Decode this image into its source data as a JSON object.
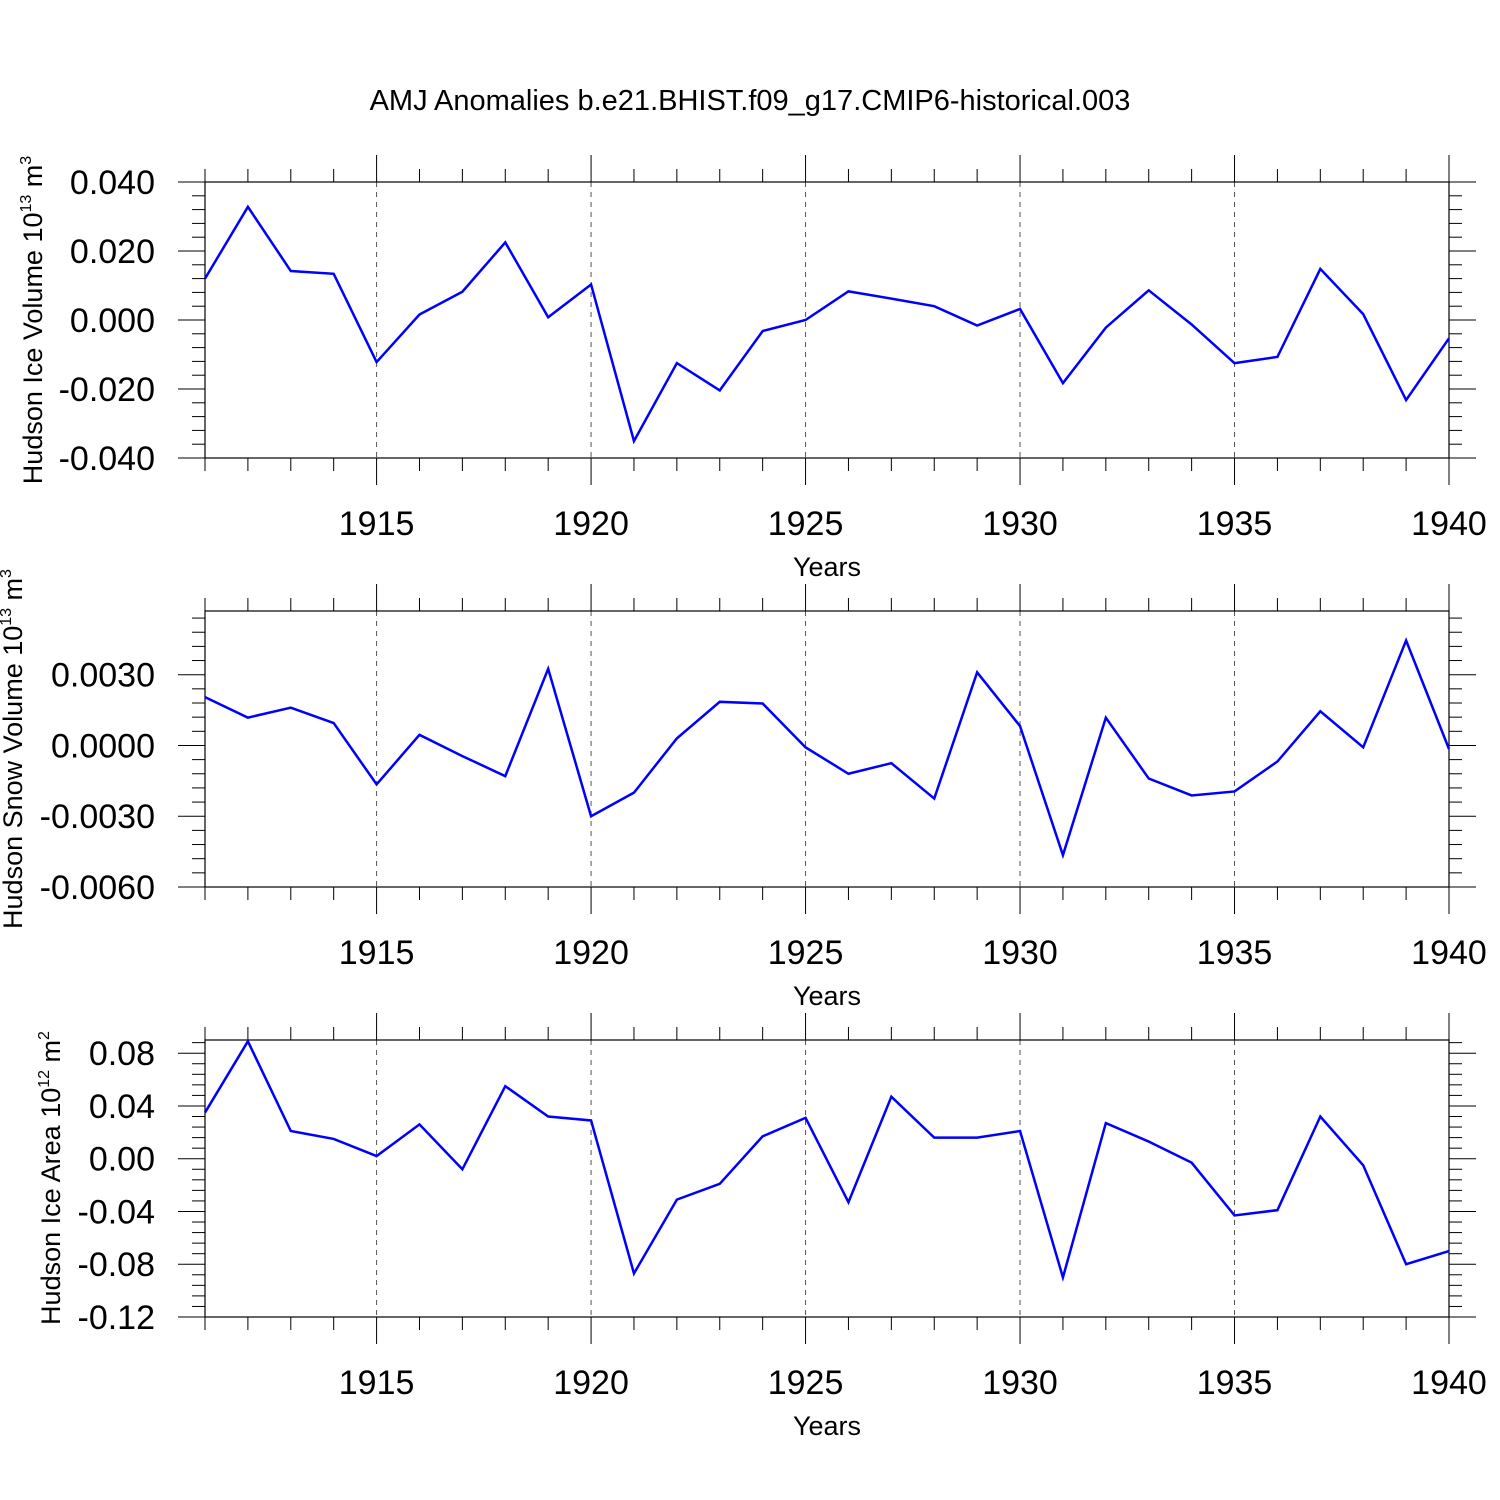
{
  "title": "AMJ Anomalies b.e21.BHIST.f09_g17.CMIP6-historical.003",
  "line_color": "#0000ff",
  "chart_data": [
    {
      "type": "line",
      "xlabel": "Years",
      "ylabel": {
        "text": "Hudson Ice Volume 10",
        "exp": "13",
        "unit": " m",
        "unit_exp": "3"
      },
      "xlim": [
        1911,
        1940
      ],
      "ylim": [
        -0.04,
        0.04
      ],
      "x_ticks": [
        1915,
        1920,
        1925,
        1930,
        1935,
        1940
      ],
      "x_tick_labels": [
        "1915",
        "1920",
        "1925",
        "1930",
        "1935",
        "1940"
      ],
      "y_ticks": [
        -0.04,
        -0.02,
        0.0,
        0.02,
        0.04
      ],
      "y_tick_labels": [
        "-0.040",
        "-0.020",
        "0.000",
        "0.020",
        "0.040"
      ],
      "grid": "dashed vertical at major x ticks",
      "series": [
        {
          "x": [
            1911,
            1912,
            1913,
            1914,
            1915,
            1916,
            1917,
            1918,
            1919,
            1920,
            1921,
            1922,
            1923,
            1924,
            1925,
            1926,
            1927,
            1928,
            1929,
            1930,
            1931,
            1932,
            1933,
            1934,
            1935,
            1936,
            1937,
            1938,
            1939,
            1940
          ],
          "values": [
            0.012,
            0.0328,
            0.0142,
            0.0134,
            -0.0122,
            0.0016,
            0.0082,
            0.0225,
            0.0008,
            0.0103,
            -0.0351,
            -0.0125,
            -0.0204,
            -0.0032,
            0.0,
            0.0083,
            0.0062,
            0.004,
            -0.0016,
            0.0032,
            -0.0183,
            -0.0022,
            0.0086,
            -0.0013,
            -0.0125,
            -0.0107,
            0.0148,
            0.0017,
            -0.0232,
            -0.0053
          ]
        }
      ]
    },
    {
      "type": "line",
      "xlabel": "Years",
      "ylabel": {
        "text": "Hudson Snow Volume 10",
        "exp": "13",
        "unit": " m",
        "unit_exp": "3"
      },
      "xlim": [
        1911,
        1940
      ],
      "ylim": [
        -0.006,
        0.0057
      ],
      "x_ticks": [
        1915,
        1920,
        1925,
        1930,
        1935,
        1940
      ],
      "x_tick_labels": [
        "1915",
        "1920",
        "1925",
        "1930",
        "1935",
        "1940"
      ],
      "y_ticks": [
        -0.006,
        -0.003,
        0.0,
        0.003
      ],
      "y_tick_labels": [
        "-0.0060",
        "-0.0030",
        "0.0000",
        "0.0030"
      ],
      "grid": "dashed vertical at major x ticks",
      "series": [
        {
          "x": [
            1911,
            1912,
            1913,
            1914,
            1915,
            1916,
            1917,
            1918,
            1919,
            1920,
            1921,
            1922,
            1923,
            1924,
            1925,
            1926,
            1927,
            1928,
            1929,
            1930,
            1931,
            1932,
            1933,
            1934,
            1935,
            1936,
            1937,
            1938,
            1939,
            1940
          ],
          "values": [
            0.00205,
            0.00118,
            0.0016,
            0.00095,
            -0.00165,
            0.00045,
            -0.00045,
            -0.0013,
            0.00325,
            -0.003,
            -0.002,
            0.0003,
            0.00185,
            0.00178,
            -8e-05,
            -0.0012,
            -0.00075,
            -0.00225,
            0.0031,
            0.00082,
            -0.00465,
            0.00118,
            -0.0014,
            -0.00212,
            -0.00195,
            -0.00068,
            0.00145,
            -8e-05,
            0.00445,
            -0.00015
          ]
        }
      ]
    },
    {
      "type": "line",
      "xlabel": "Years",
      "ylabel": {
        "text": "Hudson Ice Area 10",
        "exp": "12",
        "unit": " m",
        "unit_exp": "2"
      },
      "xlim": [
        1911,
        1940
      ],
      "ylim": [
        -0.12,
        0.09
      ],
      "x_ticks": [
        1915,
        1920,
        1925,
        1930,
        1935,
        1940
      ],
      "x_tick_labels": [
        "1915",
        "1920",
        "1925",
        "1930",
        "1935",
        "1940"
      ],
      "y_ticks": [
        -0.12,
        -0.08,
        -0.04,
        0.0,
        0.04,
        0.08
      ],
      "y_tick_labels": [
        "-0.12",
        "-0.08",
        "-0.04",
        "0.00",
        "0.04",
        "0.08"
      ],
      "grid": "dashed vertical at major x ticks",
      "series": [
        {
          "x": [
            1911,
            1912,
            1913,
            1914,
            1915,
            1916,
            1917,
            1918,
            1919,
            1920,
            1921,
            1922,
            1923,
            1924,
            1925,
            1926,
            1927,
            1928,
            1929,
            1930,
            1931,
            1932,
            1933,
            1934,
            1935,
            1936,
            1937,
            1938,
            1939,
            1940
          ],
          "values": [
            0.035,
            0.089,
            0.021,
            0.015,
            0.002,
            0.026,
            -0.008,
            0.055,
            0.032,
            0.029,
            -0.087,
            -0.031,
            -0.019,
            0.017,
            0.031,
            -0.033,
            0.047,
            0.016,
            0.016,
            0.021,
            -0.09,
            0.027,
            0.013,
            -0.003,
            -0.043,
            -0.039,
            0.032,
            -0.005,
            -0.08,
            -0.07
          ]
        }
      ]
    }
  ]
}
